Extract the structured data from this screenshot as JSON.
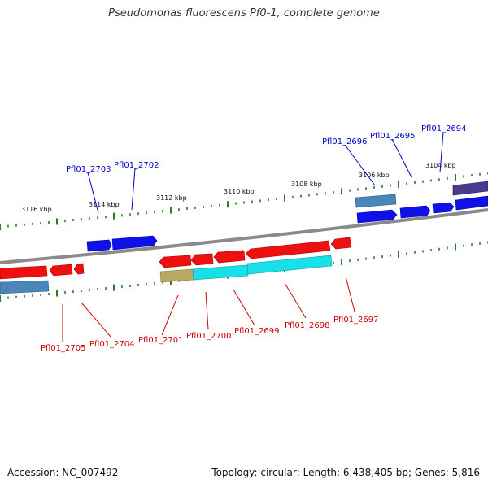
{
  "title": "Pseudomonas fluorescens Pf0-1, complete genome",
  "accession_text": "Accession: NC_007492",
  "topology_text": "Topology: circular; Length: 6,438,405 bp; Genes: 5,816",
  "colors": {
    "forward_label": "#0000cc",
    "reverse_label": "#cc0000",
    "forward_gene": "#1010e8",
    "reverse_gene": "#ee1010",
    "steelblue_gene": "#4a86b8",
    "purple_gene": "#4a3a8a",
    "olive_gene": "#b8a860",
    "cyan_gene": "#18e0e8",
    "backbone": "#808080",
    "ticks": "#2a7a2a"
  },
  "kbp_marks": [
    "3116 kbp",
    "3114 kbp",
    "3112 kbp",
    "3110 kbp",
    "3108 kbp",
    "3106 kbp",
    "3104 kbp"
  ],
  "forward_labels": [
    "Pfl01_2703",
    "Pfl01_2702",
    "Pfl01_2696",
    "Pfl01_2695",
    "Pfl01_2694"
  ],
  "reverse_labels": [
    "Pfl01_2705",
    "Pfl01_2704",
    "Pfl01_2701",
    "Pfl01_2700",
    "Pfl01_2699",
    "Pfl01_2698",
    "Pfl01_2697"
  ]
}
